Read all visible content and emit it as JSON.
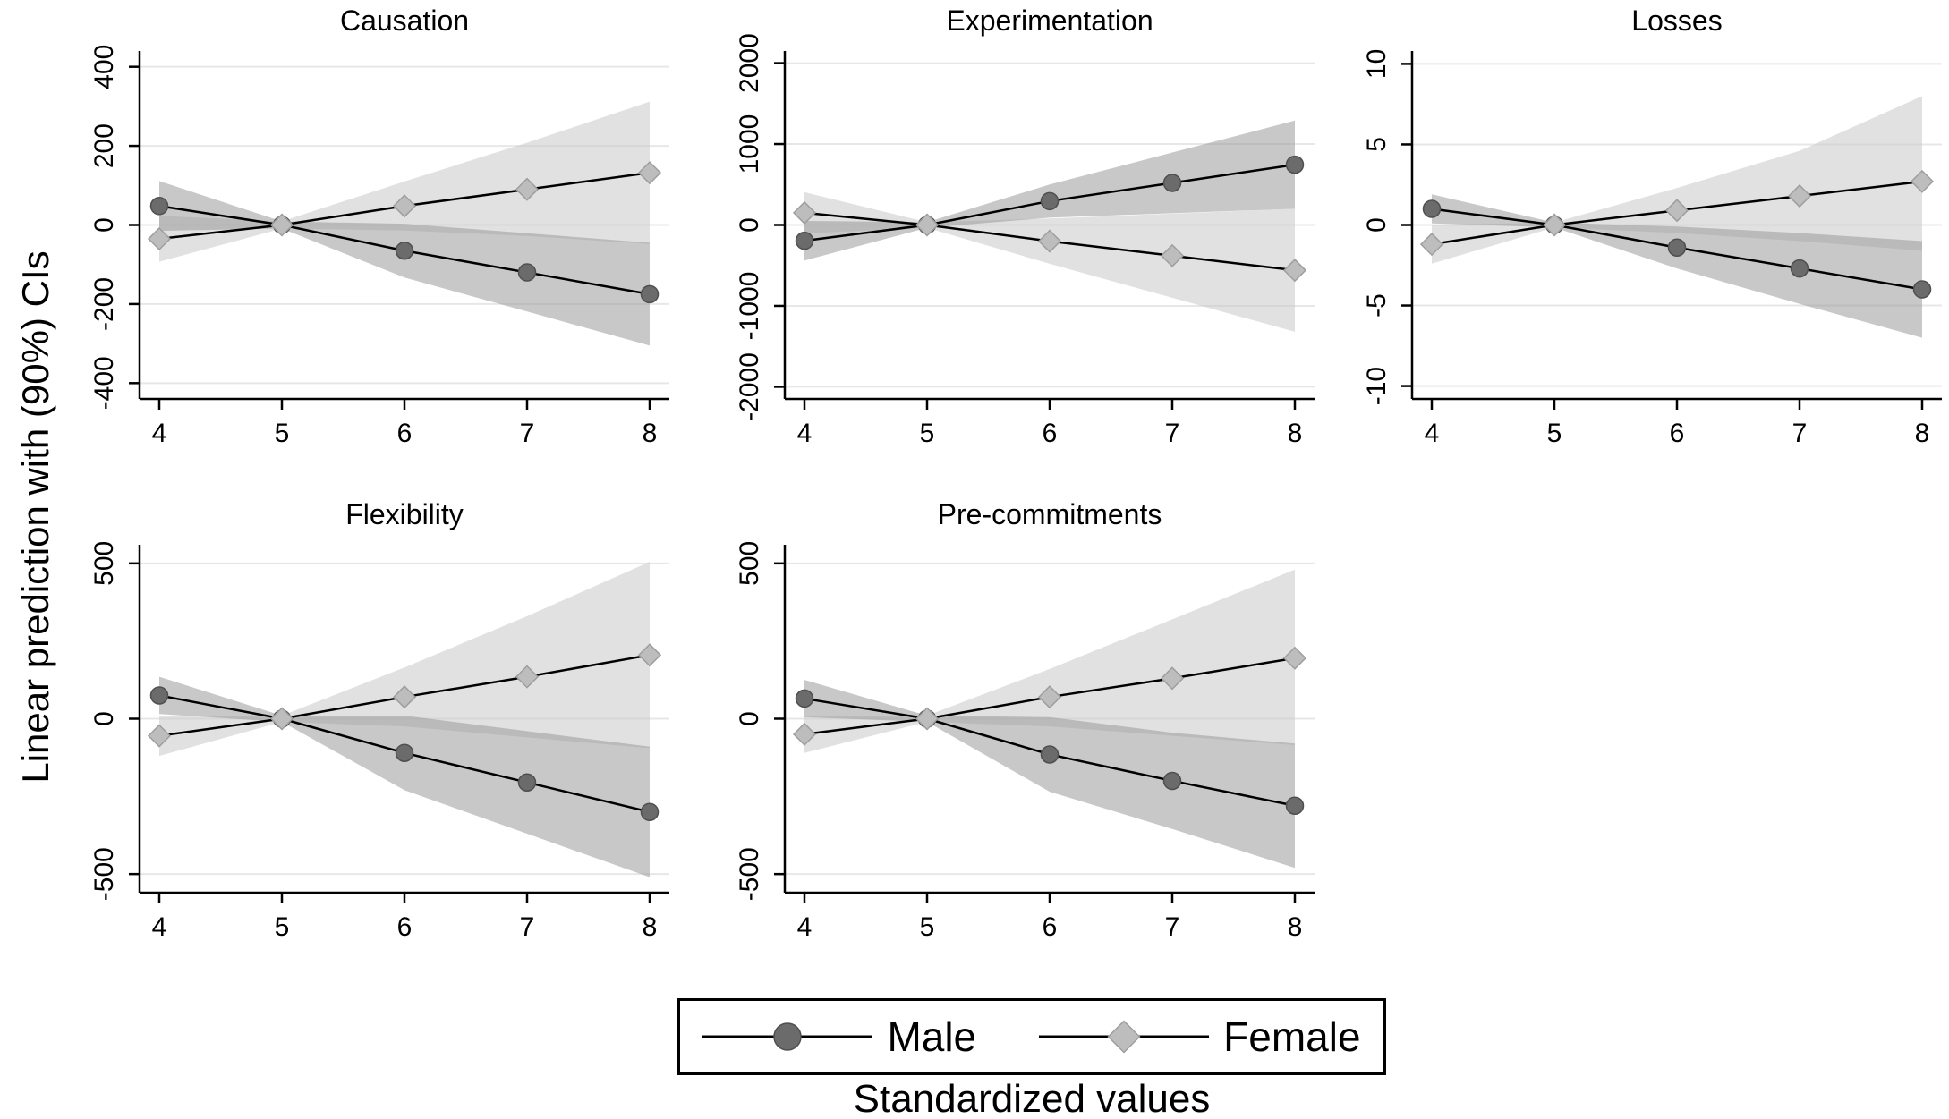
{
  "labels": {
    "y_axis": "Linear prediction with (90%) CIs",
    "x_axis": "Standardized values"
  },
  "legend": {
    "position": "bottom-center",
    "items": [
      {
        "label": "Male",
        "marker": "circle"
      },
      {
        "label": "Female",
        "marker": "diamond"
      }
    ]
  },
  "colors": {
    "male_marker": "#6b6b6b",
    "male_marker_edge": "#4f4f4f",
    "female_marker": "#bdbdbd",
    "female_marker_edge": "#9e9e9e",
    "male_ci_fill": "#9a9a9a",
    "female_ci_fill": "#c8c8c8",
    "line": "#000000",
    "gridline": "#e7e7e7",
    "axis": "#000000"
  },
  "chart_data": [
    {
      "type": "line",
      "title": "Causation",
      "x": [
        4,
        5,
        6,
        7,
        8
      ],
      "xticks": [
        4,
        5,
        6,
        7,
        8
      ],
      "yticks": [
        400,
        200,
        0,
        -200,
        -400
      ],
      "ylim": [
        -440,
        440
      ],
      "grid": true,
      "series": [
        {
          "name": "Male",
          "marker": "circle",
          "values": [
            48,
            0,
            -65,
            -120,
            -175
          ],
          "ci_lower": [
            -15,
            -9,
            -133,
            -219,
            -305
          ],
          "ci_upper": [
            111,
            9,
            3,
            -21,
            -45
          ]
        },
        {
          "name": "Female",
          "marker": "diamond",
          "values": [
            -35,
            0,
            48,
            90,
            132
          ],
          "ci_lower": [
            -93,
            -9,
            -14,
            -28,
            -48
          ],
          "ci_upper": [
            23,
            9,
            110,
            208,
            312
          ]
        }
      ]
    },
    {
      "type": "line",
      "title": "Experimentation",
      "x": [
        4,
        5,
        6,
        7,
        8
      ],
      "xticks": [
        4,
        5,
        6,
        7,
        8
      ],
      "yticks": [
        2000,
        1000,
        0,
        -1000,
        -2000
      ],
      "ylim": [
        -2150,
        2150
      ],
      "grid": true,
      "series": [
        {
          "name": "Male",
          "marker": "circle",
          "values": [
            -195,
            0,
            295,
            520,
            745
          ],
          "ci_lower": [
            -440,
            -35,
            90,
            145,
            200
          ],
          "ci_upper": [
            50,
            35,
            500,
            895,
            1290
          ]
        },
        {
          "name": "Female",
          "marker": "diamond",
          "values": [
            150,
            0,
            -200,
            -380,
            -560
          ],
          "ci_lower": [
            -105,
            -35,
            -480,
            -900,
            -1320
          ],
          "ci_upper": [
            405,
            35,
            80,
            140,
            200
          ]
        }
      ]
    },
    {
      "type": "line",
      "title": "Losses",
      "x": [
        4,
        5,
        6,
        7,
        8
      ],
      "xticks": [
        4,
        5,
        6,
        7,
        8
      ],
      "yticks": [
        10,
        5,
        0,
        -5,
        -10
      ],
      "ylim": [
        -10.8,
        10.8
      ],
      "grid": true,
      "series": [
        {
          "name": "Male",
          "marker": "circle",
          "values": [
            1.0,
            0,
            -1.4,
            -2.7,
            -4.0
          ],
          "ci_lower": [
            0.1,
            -0.15,
            -2.7,
            -4.9,
            -7.0
          ],
          "ci_upper": [
            1.9,
            0.15,
            -0.1,
            -0.5,
            -1.0
          ]
        },
        {
          "name": "Female",
          "marker": "diamond",
          "values": [
            -1.2,
            0,
            0.9,
            1.8,
            2.7
          ],
          "ci_lower": [
            -2.4,
            -0.15,
            -0.5,
            -1.0,
            -1.6
          ],
          "ci_upper": [
            0.0,
            0.15,
            2.3,
            4.6,
            8.0
          ]
        }
      ]
    },
    {
      "type": "line",
      "title": "Flexibility",
      "x": [
        4,
        5,
        6,
        7,
        8
      ],
      "xticks": [
        4,
        5,
        6,
        7,
        8
      ],
      "yticks": [
        500,
        0,
        -500
      ],
      "ylim": [
        -560,
        560
      ],
      "grid": true,
      "series": [
        {
          "name": "Male",
          "marker": "circle",
          "values": [
            75,
            0,
            -110,
            -205,
            -300
          ],
          "ci_lower": [
            15,
            -10,
            -230,
            -370,
            -510
          ],
          "ci_upper": [
            135,
            10,
            10,
            -40,
            -90
          ]
        },
        {
          "name": "Female",
          "marker": "diamond",
          "values": [
            -55,
            0,
            70,
            135,
            205
          ],
          "ci_lower": [
            -120,
            -10,
            -25,
            -60,
            -95
          ],
          "ci_upper": [
            10,
            10,
            165,
            330,
            505
          ]
        }
      ]
    },
    {
      "type": "line",
      "title": "Pre-commitments",
      "x": [
        4,
        5,
        6,
        7,
        8
      ],
      "xticks": [
        4,
        5,
        6,
        7,
        8
      ],
      "yticks": [
        500,
        0,
        -500
      ],
      "ylim": [
        -560,
        560
      ],
      "grid": true,
      "series": [
        {
          "name": "Male",
          "marker": "circle",
          "values": [
            65,
            0,
            -115,
            -200,
            -280
          ],
          "ci_lower": [
            5,
            -10,
            -235,
            -355,
            -480
          ],
          "ci_upper": [
            125,
            10,
            5,
            -45,
            -80
          ]
        },
        {
          "name": "Female",
          "marker": "diamond",
          "values": [
            -50,
            0,
            70,
            130,
            195
          ],
          "ci_lower": [
            -110,
            -10,
            -25,
            -55,
            -85
          ],
          "ci_upper": [
            10,
            10,
            160,
            320,
            480
          ]
        }
      ]
    }
  ]
}
